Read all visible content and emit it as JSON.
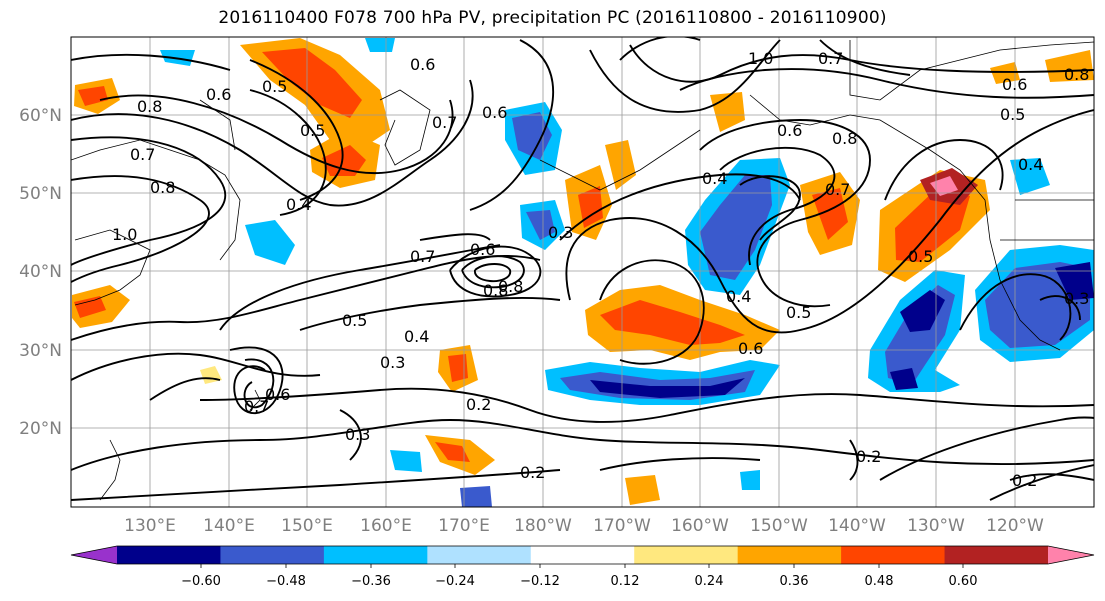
{
  "title": "2016110400 F078 700 hPa PV, precipitation PC (2016110800 - 2016110900)",
  "lat_labels": [
    "60°N",
    "50°N",
    "40°N",
    "30°N",
    "20°N"
  ],
  "lon_labels": [
    "130°E",
    "140°E",
    "150°E",
    "160°E",
    "170°E",
    "180°W",
    "170°W",
    "160°W",
    "150°W",
    "140°W",
    "130°W",
    "120°W"
  ],
  "colorbar": {
    "colors": [
      "#9932cc",
      "#00008b",
      "#3a5acd",
      "#00bfff",
      "#afe1ff",
      "#ffffff",
      "#ffe87f",
      "#ffa500",
      "#ff4500",
      "#b22222",
      "#ff82ab"
    ],
    "ticks": [
      "−0.60",
      "−0.48",
      "−0.36",
      "−0.24",
      "−0.12",
      "0.12",
      "0.24",
      "0.36",
      "0.48",
      "0.60"
    ]
  },
  "contour_labels": [
    "0.8",
    "0.5",
    "0.5",
    "0.6",
    "0.7",
    "0.6",
    "1.0",
    "0.7",
    "0.6",
    "0.8",
    "0.5",
    "0.4",
    "0.8",
    "1.0",
    "0.7",
    "0.8",
    "0.4",
    "0.7",
    "0.6",
    "0.3",
    "0.8",
    "0.6",
    "0.4",
    "0.7",
    "0.6",
    "0.8",
    "0.5",
    "0.5",
    "0.4",
    "0.5",
    "0.4",
    "0.3",
    "0.6",
    "0.7",
    "0.6",
    "0.3",
    "0.2",
    "0.2",
    "0.2",
    "0.2",
    "0.3"
  ]
}
